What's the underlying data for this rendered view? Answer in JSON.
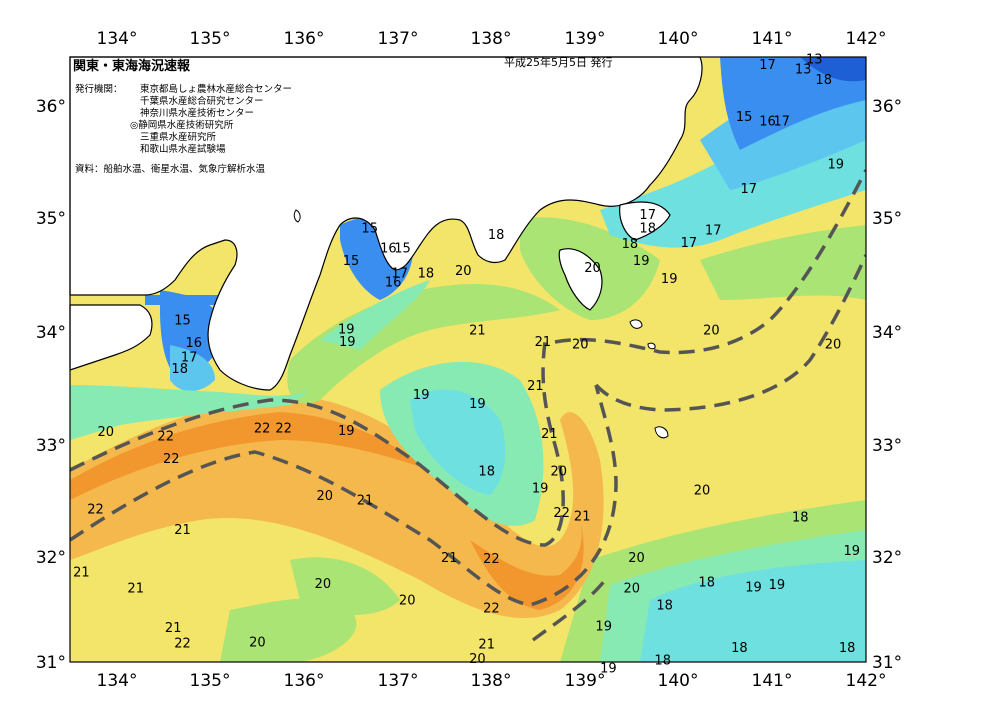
{
  "header": {
    "title": "関東・東海海況速報",
    "date": "平成25年5月5日 発行",
    "issuers_label": "発行機関：",
    "issuers": [
      "東京都島しょ農林水産総合センター",
      "千葉県水産総合研究センター",
      "神奈川県水産技術センター",
      "◎静岡県水産技術研究所",
      "三重県水産研究所",
      "和歌山県水産試験場"
    ],
    "source": "資料：船舶水温、衛星水温、気象庁解析水温"
  },
  "axes": {
    "lon_ticks": [
      "134°",
      "135°",
      "136°",
      "137°",
      "138°",
      "139°",
      "140°",
      "141°",
      "142°"
    ],
    "lat_ticks": [
      "36°",
      "35°",
      "34°",
      "33°",
      "32°",
      "31°"
    ]
  },
  "contour_labels": [
    {
      "t": "13",
      "lon": 141.45,
      "lat": 36.43
    },
    {
      "t": "13",
      "lon": 141.33,
      "lat": 36.34
    },
    {
      "t": "17",
      "lon": 140.95,
      "lat": 36.38
    },
    {
      "t": "18",
      "lon": 141.55,
      "lat": 36.25
    },
    {
      "t": "15",
      "lon": 140.7,
      "lat": 35.92
    },
    {
      "t": "16",
      "lon": 140.95,
      "lat": 35.88
    },
    {
      "t": "17",
      "lon": 141.1,
      "lat": 35.88
    },
    {
      "t": "19",
      "lon": 141.68,
      "lat": 35.5
    },
    {
      "t": "17",
      "lon": 140.75,
      "lat": 35.28
    },
    {
      "t": "17",
      "lon": 139.67,
      "lat": 35.05
    },
    {
      "t": "18",
      "lon": 139.67,
      "lat": 34.93
    },
    {
      "t": "17",
      "lon": 140.11,
      "lat": 34.8
    },
    {
      "t": "17",
      "lon": 140.37,
      "lat": 34.91
    },
    {
      "t": "18",
      "lon": 138.05,
      "lat": 34.87
    },
    {
      "t": "18",
      "lon": 139.48,
      "lat": 34.79
    },
    {
      "t": "19",
      "lon": 139.6,
      "lat": 34.64
    },
    {
      "t": "20",
      "lon": 139.08,
      "lat": 34.58
    },
    {
      "t": "19",
      "lon": 139.9,
      "lat": 34.48
    },
    {
      "t": "15",
      "lon": 136.7,
      "lat": 34.93
    },
    {
      "t": "16",
      "lon": 136.9,
      "lat": 34.75
    },
    {
      "t": "15",
      "lon": 137.05,
      "lat": 34.75
    },
    {
      "t": "15",
      "lon": 136.5,
      "lat": 34.64
    },
    {
      "t": "17",
      "lon": 137.02,
      "lat": 34.53
    },
    {
      "t": "16",
      "lon": 136.95,
      "lat": 34.45
    },
    {
      "t": "18",
      "lon": 137.3,
      "lat": 34.53
    },
    {
      "t": "20",
      "lon": 137.7,
      "lat": 34.55
    },
    {
      "t": "20",
      "lon": 140.35,
      "lat": 34.02
    },
    {
      "t": "21",
      "lon": 137.85,
      "lat": 34.02
    },
    {
      "t": "21",
      "lon": 138.55,
      "lat": 33.92
    },
    {
      "t": "20",
      "lon": 138.95,
      "lat": 33.9
    },
    {
      "t": "20",
      "lon": 141.65,
      "lat": 33.9
    },
    {
      "t": "15",
      "lon": 134.7,
      "lat": 34.11
    },
    {
      "t": "16",
      "lon": 134.82,
      "lat": 33.91
    },
    {
      "t": "17",
      "lon": 134.77,
      "lat": 33.78
    },
    {
      "t": "18",
      "lon": 134.67,
      "lat": 33.68
    },
    {
      "t": "19",
      "lon": 136.45,
      "lat": 34.03
    },
    {
      "t": "19",
      "lon": 136.46,
      "lat": 33.92
    },
    {
      "t": "19",
      "lon": 137.25,
      "lat": 33.45
    },
    {
      "t": "19",
      "lon": 137.85,
      "lat": 33.37
    },
    {
      "t": "21",
      "lon": 138.47,
      "lat": 33.53
    },
    {
      "t": "19",
      "lon": 136.45,
      "lat": 33.13
    },
    {
      "t": "22",
      "lon": 135.55,
      "lat": 33.15
    },
    {
      "t": "22",
      "lon": 135.78,
      "lat": 33.15
    },
    {
      "t": "20",
      "lon": 133.88,
      "lat": 33.12
    },
    {
      "t": "22",
      "lon": 134.52,
      "lat": 33.08
    },
    {
      "t": "21",
      "lon": 138.62,
      "lat": 33.1
    },
    {
      "t": "22",
      "lon": 134.58,
      "lat": 32.88
    },
    {
      "t": "18",
      "lon": 137.95,
      "lat": 32.77
    },
    {
      "t": "20",
      "lon": 138.72,
      "lat": 32.77
    },
    {
      "t": "19",
      "lon": 138.52,
      "lat": 32.62
    },
    {
      "t": "20",
      "lon": 140.25,
      "lat": 32.6
    },
    {
      "t": "20",
      "lon": 136.22,
      "lat": 32.55
    },
    {
      "t": "21",
      "lon": 136.65,
      "lat": 32.51
    },
    {
      "t": "22",
      "lon": 133.77,
      "lat": 32.43
    },
    {
      "t": "22",
      "lon": 138.75,
      "lat": 32.4
    },
    {
      "t": "21",
      "lon": 138.97,
      "lat": 32.37
    },
    {
      "t": "18",
      "lon": 141.3,
      "lat": 32.36
    },
    {
      "t": "21",
      "lon": 134.7,
      "lat": 32.25
    },
    {
      "t": "19",
      "lon": 141.85,
      "lat": 32.06
    },
    {
      "t": "21",
      "lon": 137.55,
      "lat": 32.0
    },
    {
      "t": "22",
      "lon": 138.0,
      "lat": 31.99
    },
    {
      "t": "20",
      "lon": 139.55,
      "lat": 32.0
    },
    {
      "t": "21",
      "lon": 133.62,
      "lat": 31.87
    },
    {
      "t": "20",
      "lon": 136.2,
      "lat": 31.77
    },
    {
      "t": "18",
      "lon": 140.3,
      "lat": 31.78
    },
    {
      "t": "19",
      "lon": 140.8,
      "lat": 31.74
    },
    {
      "t": "19",
      "lon": 141.05,
      "lat": 31.76
    },
    {
      "t": "21",
      "lon": 134.2,
      "lat": 31.73
    },
    {
      "t": "20",
      "lon": 139.5,
      "lat": 31.73
    },
    {
      "t": "20",
      "lon": 137.1,
      "lat": 31.62
    },
    {
      "t": "18",
      "lon": 139.85,
      "lat": 31.58
    },
    {
      "t": "22",
      "lon": 138.0,
      "lat": 31.55
    },
    {
      "t": "21",
      "lon": 134.6,
      "lat": 31.38
    },
    {
      "t": "19",
      "lon": 139.2,
      "lat": 31.39
    },
    {
      "t": "22",
      "lon": 134.7,
      "lat": 31.24
    },
    {
      "t": "20",
      "lon": 135.5,
      "lat": 31.25
    },
    {
      "t": "21",
      "lon": 137.95,
      "lat": 31.23
    },
    {
      "t": "18",
      "lon": 140.65,
      "lat": 31.2
    },
    {
      "t": "18",
      "lon": 141.8,
      "lat": 31.2
    },
    {
      "t": "20",
      "lon": 137.85,
      "lat": 31.1
    },
    {
      "t": "18",
      "lon": 139.83,
      "lat": 31.09
    },
    {
      "t": "19",
      "lon": 139.25,
      "lat": 31.02
    }
  ],
  "colors": {
    "t13": "#1f5fd6",
    "t15": "#3a8ef0",
    "t16": "#55a8f2",
    "t17": "#5cc6ee",
    "t18": "#6ee0e0",
    "t19": "#86eab2",
    "t20": "#a9e474",
    "t21": "#f3e46a",
    "t22": "#f5b84c",
    "t23": "#f2962e",
    "land": "#ffffff",
    "coast": "#000000",
    "front": "#555555"
  }
}
